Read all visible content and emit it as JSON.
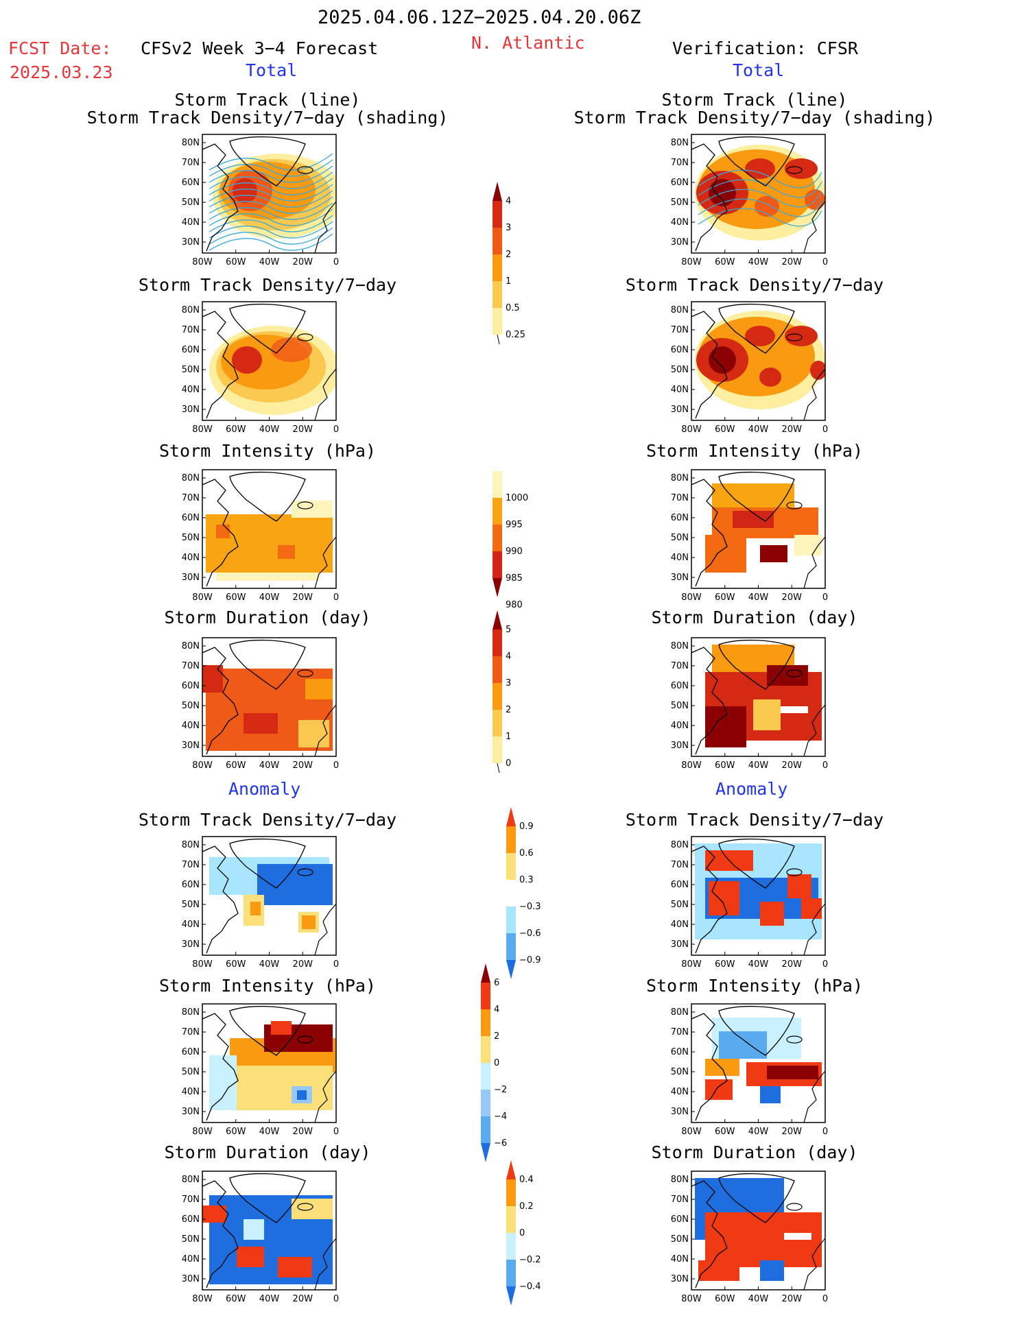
{
  "header": {
    "date_range": "2025.04.06.12Z−2025.04.20.06Z",
    "fcst_label": "FCST Date:",
    "fcst_date": "2025.03.23",
    "model_title": "CFSv2 Week 3−4 Forecast",
    "region": "N. Atlantic",
    "verification": "Verification: CFSR"
  },
  "sections": {
    "total": "Total",
    "anomaly": "Anomaly"
  },
  "panel_titles": {
    "track_line": "Storm Track (line)",
    "track_shading": "Storm Track Density/7−day (shading)",
    "density": "Storm Track Density/7−day",
    "intensity": "Storm Intensity (hPa)",
    "duration": "Storm Duration (day)"
  },
  "axes": {
    "lat_labels": [
      "80N",
      "70N",
      "60N",
      "50N",
      "40N",
      "30N"
    ],
    "lon_labels": [
      "80W",
      "60W",
      "40W",
      "20W",
      "0"
    ]
  },
  "colorbars": {
    "density_total": {
      "labels": [
        "4",
        "3",
        "2",
        "1",
        "0.5",
        "0.25"
      ],
      "colors": [
        "#8b0000",
        "#d42a14",
        "#f05a17",
        "#f99a10",
        "#fbc94f",
        "#fdeea0"
      ]
    },
    "intensity_total": {
      "labels": [
        "1000",
        "995",
        "990",
        "985",
        "980"
      ],
      "colors": [
        "#fdf4bb",
        "#f9a512",
        "#f36a10",
        "#d02517",
        "#8b0000"
      ]
    },
    "duration_total": {
      "labels": [
        "5",
        "4",
        "3",
        "2",
        "1",
        "0"
      ],
      "colors": [
        "#8b0000",
        "#d42a14",
        "#f05a17",
        "#f99a10",
        "#fbc94f",
        "#fdeea0"
      ]
    },
    "density_anom": {
      "labels": [
        "0.9",
        "0.6",
        "0.3",
        "−0.3",
        "−0.6",
        "−0.9"
      ],
      "colors": [
        "#f03a14",
        "#f99a10",
        "#fbe07a",
        "#ffffff",
        "#a8e6ff",
        "#5aaaf0",
        "#1e6ee0"
      ]
    },
    "intensity_anom": {
      "labels": [
        "6",
        "4",
        "2",
        "0",
        "−2",
        "−4",
        "−6"
      ],
      "colors": [
        "#8b0000",
        "#f03a14",
        "#f99a10",
        "#fbe07a",
        "#c8f0ff",
        "#96c8f8",
        "#5aaaf0",
        "#1e6ee0"
      ]
    },
    "duration_anom": {
      "labels": [
        "0.4",
        "0.2",
        "0",
        "−0.2",
        "−0.4"
      ],
      "colors": [
        "#f03a14",
        "#f99a10",
        "#fbe07a",
        "#c8f0ff",
        "#5aaaf0",
        "#1e6ee0"
      ]
    }
  },
  "palette": {
    "track_line": "#39a9d8",
    "map_bg": "#ffffff"
  }
}
